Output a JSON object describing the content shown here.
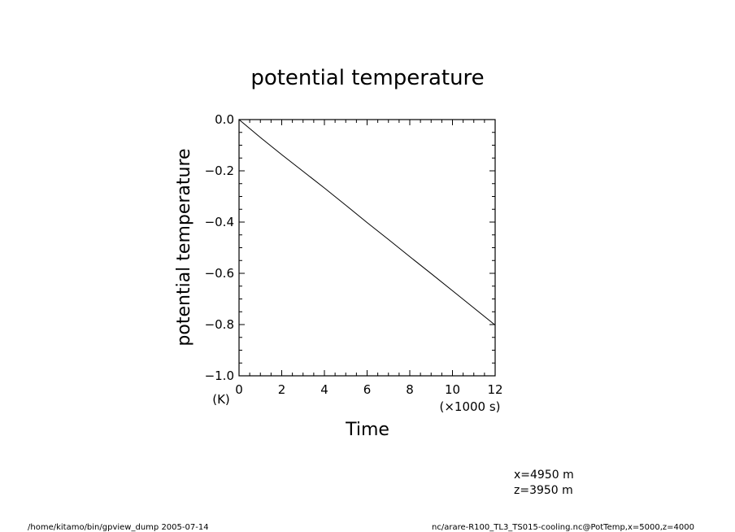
{
  "chart_data": {
    "type": "line",
    "title": "potential temperature",
    "xlabel": "Time",
    "ylabel": "potential temperature",
    "x_unit": "(×1000 s)",
    "y_unit": "(K)",
    "xlim": [
      0,
      12
    ],
    "ylim": [
      -1.0,
      0.0
    ],
    "x_ticks": [
      "0",
      "2",
      "4",
      "6",
      "8",
      "10",
      "12"
    ],
    "y_ticks": [
      "0.0",
      "−0.2",
      "−0.4",
      "−0.6",
      "−0.8",
      "−1.0"
    ],
    "grid": false,
    "series": [
      {
        "x": [
          0,
          1,
          2,
          3,
          4,
          5,
          6,
          7,
          8,
          9,
          10,
          11,
          12
        ],
        "values": [
          0.0,
          -0.07,
          -0.137,
          -0.202,
          -0.267,
          -0.334,
          -0.402,
          -0.468,
          -0.535,
          -0.601,
          -0.668,
          -0.735,
          -0.802
        ]
      }
    ]
  },
  "annotations": {
    "coord_x": "x=4950  m",
    "coord_z": "z=3950  m",
    "footer_left": "/home/kitamo/bin/gpview_dump  2005-07-14",
    "footer_right": "nc/arare-R100_TL3_TS015-cooling.nc@PotTemp,x=5000,z=4000"
  }
}
